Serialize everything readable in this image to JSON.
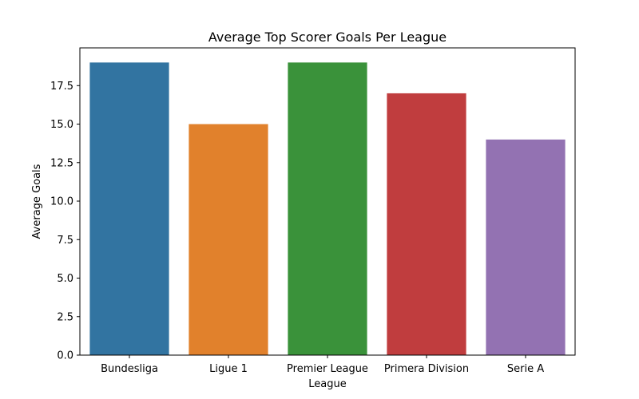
{
  "chart_data": {
    "type": "bar",
    "title": "Average Top Scorer Goals Per League",
    "xlabel": "League",
    "ylabel": "Average Goals",
    "categories": [
      "Bundesliga",
      "Ligue 1",
      "Premier League",
      "Primera Division",
      "Serie A"
    ],
    "values": [
      19,
      15,
      19,
      17,
      14
    ],
    "colors": [
      "#3274a1",
      "#e1812c",
      "#3a923a",
      "#c03d3e",
      "#9372b2"
    ],
    "ylim": [
      0,
      19.95
    ],
    "yticks": [
      0,
      2.5,
      5,
      7.5,
      10,
      12.5,
      15,
      17.5
    ],
    "ytick_labels": [
      "0.0",
      "2.5",
      "5.0",
      "7.5",
      "10.0",
      "12.5",
      "15.0",
      "17.5"
    ],
    "grid": false,
    "legend": "none"
  }
}
